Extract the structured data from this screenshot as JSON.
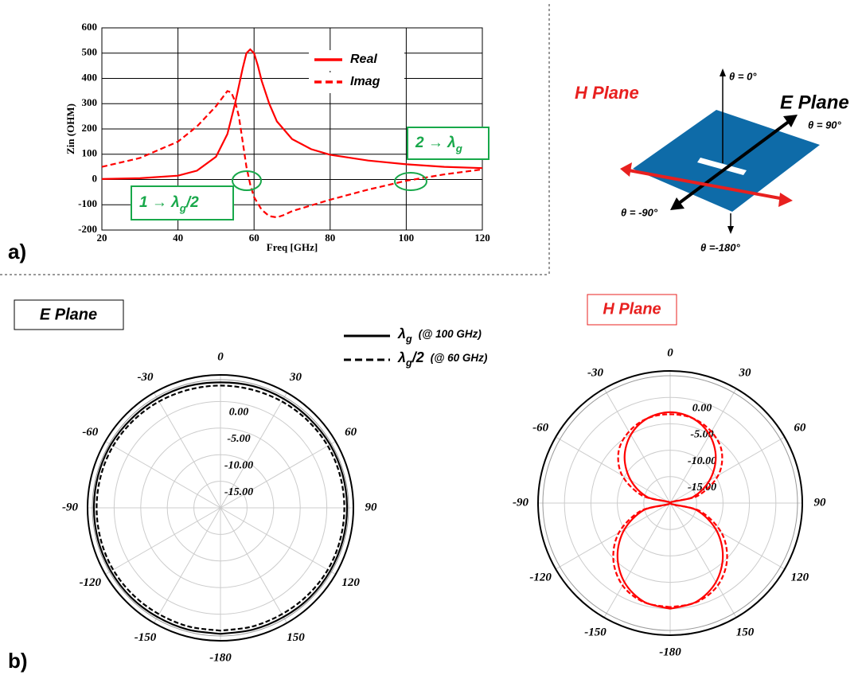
{
  "panels": {
    "a": "a)",
    "b": "b)"
  },
  "diagram": {
    "h_plane": "H Plane",
    "e_plane": "E Plane",
    "theta_top": "θ = 0°",
    "theta_right": "θ = 90°",
    "theta_left": "θ = -90°",
    "theta_bottom": "θ =-180°"
  },
  "chart_data": [
    {
      "type": "line",
      "x_label": "Freq [GHz]",
      "y_label": "Zin (OHM)",
      "xlim": [
        20,
        120
      ],
      "xticks": [
        20,
        40,
        60,
        80,
        100,
        120
      ],
      "ylim": [
        -200,
        600
      ],
      "yticks": [
        -200,
        -100,
        0,
        100,
        200,
        300,
        400,
        500,
        600
      ],
      "grid": true,
      "legend": "top",
      "series": [
        {
          "name": "Real",
          "color": "#ff0000",
          "dash": false,
          "x": [
            20,
            30,
            40,
            45,
            50,
            53,
            55,
            57,
            58,
            59,
            60,
            61,
            62,
            64,
            66,
            70,
            75,
            80,
            90,
            100,
            110,
            120
          ],
          "values": [
            2,
            5,
            15,
            35,
            90,
            180,
            300,
            440,
            500,
            515,
            500,
            450,
            390,
            300,
            230,
            160,
            120,
            98,
            75,
            60,
            50,
            45
          ]
        },
        {
          "name": "Imag",
          "color": "#ff0000",
          "dash": true,
          "x": [
            20,
            30,
            40,
            45,
            50,
            53,
            54,
            55,
            56,
            57,
            58,
            59,
            60,
            62,
            64,
            66,
            68,
            70,
            80,
            90,
            100,
            110,
            120
          ],
          "values": [
            50,
            85,
            150,
            210,
            290,
            350,
            345,
            310,
            250,
            150,
            50,
            -20,
            -70,
            -120,
            -145,
            -150,
            -140,
            -125,
            -80,
            -40,
            -5,
            20,
            40
          ]
        }
      ],
      "annotations": [
        {
          "text": "2 → λ",
          "sub": "g"
        },
        {
          "text": "1 → λ",
          "sub": "g",
          "tail": "/2"
        }
      ]
    },
    {
      "type": "polar",
      "title": "E Plane",
      "color": "#000000",
      "rlim": [
        -20,
        5
      ],
      "rticks": [
        {
          "value": 0,
          "label": "0.00"
        },
        {
          "value": -5,
          "label": "-5.00"
        },
        {
          "value": -10,
          "label": "-10.00"
        },
        {
          "value": -15,
          "label": "-15.00"
        }
      ],
      "thetaticks": [
        0,
        30,
        60,
        90,
        120,
        150,
        -180,
        -150,
        -120,
        -90,
        -60,
        -30
      ],
      "theta": [
        -180,
        -165,
        -150,
        -135,
        -120,
        -105,
        -90,
        -75,
        -60,
        -45,
        -30,
        -15,
        0,
        15,
        30,
        45,
        60,
        75,
        90,
        105,
        120,
        135,
        150,
        165,
        180
      ],
      "series": [
        {
          "name": "λ",
          "name_sub": "g",
          "name_note": "(@ 100 GHz)",
          "dash": false,
          "values": [
            3.7,
            3.7,
            3.7,
            3.8,
            3.8,
            3.8,
            3.8,
            3.8,
            3.8,
            3.7,
            3.7,
            3.7,
            3.6,
            3.7,
            3.7,
            3.7,
            3.8,
            3.8,
            3.8,
            3.8,
            3.8,
            3.8,
            3.7,
            3.7,
            3.7
          ]
        },
        {
          "name": "λ",
          "name_sub": "g",
          "name_tail": "/2",
          "name_note": "(@ 60 GHz)",
          "dash": true,
          "values": [
            3.1,
            3.1,
            3.1,
            3.2,
            3.3,
            3.3,
            3.3,
            3.3,
            3.3,
            3.2,
            3.1,
            3.0,
            3.0,
            3.0,
            3.1,
            3.2,
            3.3,
            3.3,
            3.3,
            3.3,
            3.3,
            3.2,
            3.1,
            3.1,
            3.1
          ]
        }
      ]
    },
    {
      "type": "polar",
      "title": "H Plane",
      "color": "#ff0000",
      "rlim": [
        -20,
        5
      ],
      "rticks": [
        {
          "value": 0,
          "label": "0.00"
        },
        {
          "value": -5,
          "label": "-5.00"
        },
        {
          "value": -10,
          "label": "-10.00"
        },
        {
          "value": -15,
          "label": "-15.00"
        }
      ],
      "thetaticks": [
        0,
        30,
        60,
        90,
        120,
        150,
        -180,
        -150,
        -120,
        -90,
        -60,
        -30
      ],
      "theta": [
        -180,
        -165,
        -150,
        -135,
        -120,
        -105,
        -90,
        -75,
        -60,
        -45,
        -30,
        -15,
        0,
        15,
        30,
        45,
        60,
        75,
        90,
        105,
        120,
        135,
        150,
        165,
        180
      ],
      "series": [
        {
          "dash": false,
          "values": [
            0,
            -0.7,
            -2.7,
            -5.9,
            -10,
            -14.8,
            -20,
            -15.5,
            -11.4,
            -7.8,
            -5.1,
            -3.4,
            -2.8,
            -3.4,
            -5.1,
            -7.8,
            -11.4,
            -15.5,
            -20,
            -14.8,
            -10,
            -5.9,
            -2.7,
            -0.7,
            0
          ]
        },
        {
          "dash": true,
          "values": [
            -0.3,
            -0.6,
            -2.0,
            -4.8,
            -8.8,
            -14.2,
            -20,
            -14.5,
            -9.5,
            -6.2,
            -4.4,
            -3.4,
            -3.2,
            -3.4,
            -4.4,
            -6.2,
            -9.5,
            -14.5,
            -20,
            -14.2,
            -8.8,
            -4.8,
            -2.0,
            -0.6,
            -0.3
          ]
        }
      ]
    }
  ]
}
